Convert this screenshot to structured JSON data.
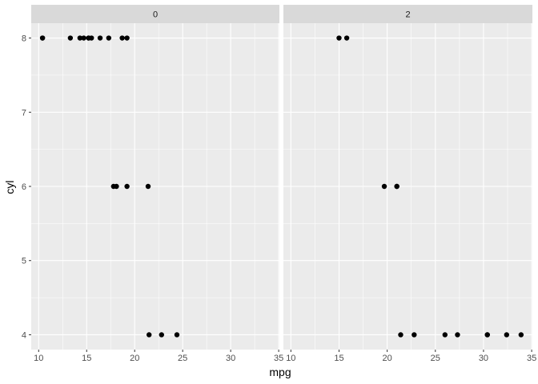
{
  "chart_data": {
    "type": "scatter",
    "xlabel": "mpg",
    "ylabel": "cyl",
    "xlim": [
      9.225,
      35.075
    ],
    "ylim": [
      3.8,
      8.2
    ],
    "x_ticks": [
      10,
      15,
      20,
      25,
      30,
      35
    ],
    "y_ticks": [
      4,
      5,
      6,
      7,
      8
    ],
    "grid": true,
    "legend": "none",
    "point_color": "#000000",
    "panel_background": "#ebebeb",
    "strip_background": "#d9d9d9",
    "grid_color": "#ffffff",
    "facets": [
      {
        "label": "0",
        "points": [
          {
            "x": 21.4,
            "y": 6
          },
          {
            "x": 18.7,
            "y": 8
          },
          {
            "x": 18.1,
            "y": 6
          },
          {
            "x": 14.3,
            "y": 8
          },
          {
            "x": 24.4,
            "y": 4
          },
          {
            "x": 22.8,
            "y": 4
          },
          {
            "x": 19.2,
            "y": 6
          },
          {
            "x": 17.8,
            "y": 6
          },
          {
            "x": 16.4,
            "y": 8
          },
          {
            "x": 17.3,
            "y": 8
          },
          {
            "x": 15.2,
            "y": 8
          },
          {
            "x": 10.4,
            "y": 8
          },
          {
            "x": 10.4,
            "y": 8
          },
          {
            "x": 14.7,
            "y": 8
          },
          {
            "x": 21.5,
            "y": 4
          },
          {
            "x": 15.5,
            "y": 8
          },
          {
            "x": 15.2,
            "y": 8
          },
          {
            "x": 13.3,
            "y": 8
          },
          {
            "x": 19.2,
            "y": 8
          }
        ]
      },
      {
        "label": "2",
        "points": [
          {
            "x": 21.0,
            "y": 6
          },
          {
            "x": 21.0,
            "y": 6
          },
          {
            "x": 22.8,
            "y": 4
          },
          {
            "x": 32.4,
            "y": 4
          },
          {
            "x": 30.4,
            "y": 4
          },
          {
            "x": 33.9,
            "y": 4
          },
          {
            "x": 27.3,
            "y": 4
          },
          {
            "x": 26.0,
            "y": 4
          },
          {
            "x": 30.4,
            "y": 4
          },
          {
            "x": 15.8,
            "y": 8
          },
          {
            "x": 19.7,
            "y": 6
          },
          {
            "x": 15.0,
            "y": 8
          },
          {
            "x": 21.4,
            "y": 4
          }
        ]
      }
    ]
  }
}
